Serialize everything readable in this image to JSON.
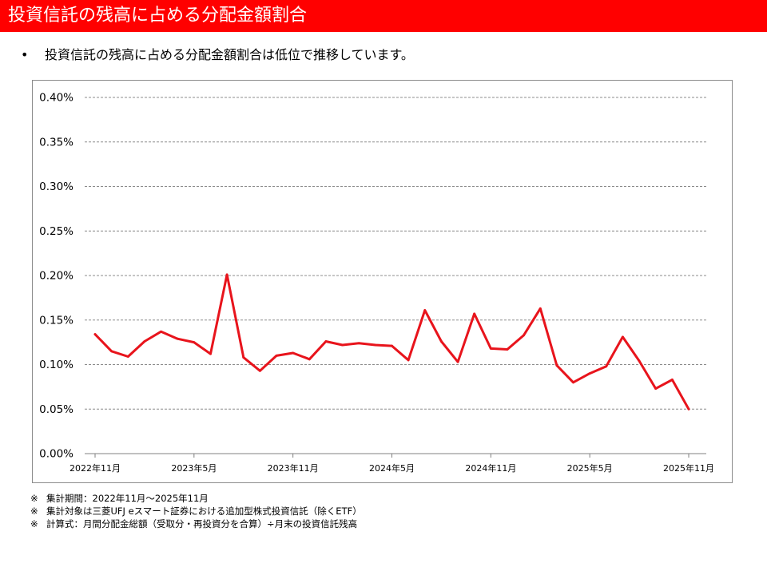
{
  "header": {
    "title": "投資信託の残高に占める分配金額割合",
    "bg_color": "#ff0000"
  },
  "bullet": {
    "symbol": "•",
    "text": "投資信託の残高に占める分配金額割合は低位で推移しています。"
  },
  "chart_data": {
    "type": "line",
    "title": "",
    "xlabel": "",
    "ylabel": "",
    "ylim": [
      0,
      0.4
    ],
    "y_ticks": [
      "0.00%",
      "0.05%",
      "0.10%",
      "0.15%",
      "0.20%",
      "0.25%",
      "0.30%",
      "0.35%",
      "0.40%"
    ],
    "x_ticks": [
      {
        "index": 0,
        "label": "2022年11月"
      },
      {
        "index": 6,
        "label": "2023年5月"
      },
      {
        "index": 12,
        "label": "2023年11月"
      },
      {
        "index": 18,
        "label": "2024年5月"
      },
      {
        "index": 24,
        "label": "2024年11月"
      },
      {
        "index": 30,
        "label": "2025年5月"
      },
      {
        "index": 36,
        "label": "2025年11月"
      }
    ],
    "grid": true,
    "line_color": "#e8141c",
    "series": [
      {
        "values": [
          0.134,
          0.115,
          0.109,
          0.126,
          0.137,
          0.129,
          0.125,
          0.112,
          0.201,
          0.108,
          0.093,
          0.11,
          0.113,
          0.106,
          0.126,
          0.122,
          0.124,
          0.122,
          0.121,
          0.105,
          0.161,
          0.126,
          0.103,
          0.157,
          0.118,
          0.117,
          0.133,
          0.163,
          0.099,
          0.08,
          0.09,
          0.098,
          0.131,
          0.104,
          0.073,
          0.083,
          0.05
        ]
      }
    ]
  },
  "notes": [
    {
      "mark": "※",
      "text": "集計期間：2022年11月～2025年11月"
    },
    {
      "mark": "※",
      "text": "集計対象は三菱UFJ eスマート証券における追加型株式投資信託（除くETF）"
    },
    {
      "mark": "※",
      "text": "計算式：月間分配金総額（受取分・再投資分を合算）÷月末の投資信託残高"
    }
  ]
}
